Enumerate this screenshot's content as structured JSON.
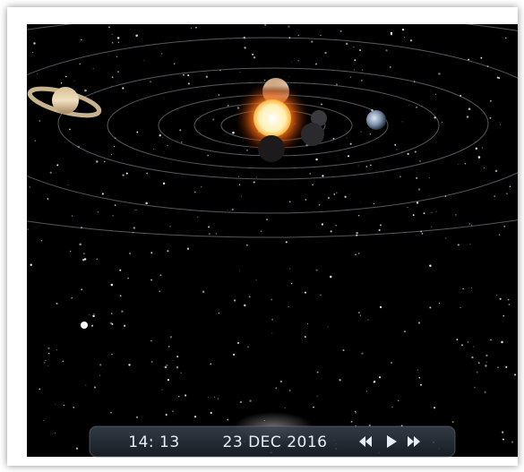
{
  "time_bar": {
    "time": "14: 13",
    "date": "23 DEC 2016"
  }
}
